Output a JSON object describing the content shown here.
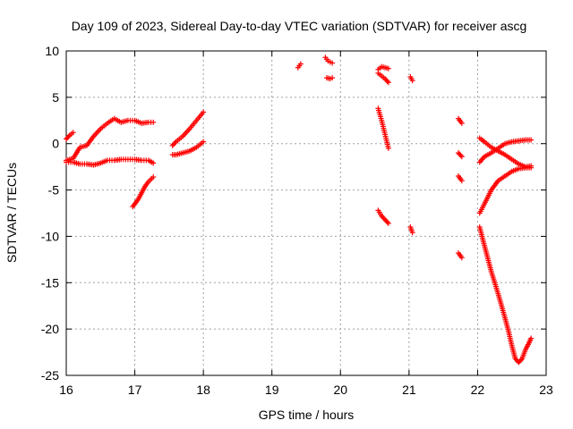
{
  "chart_data": {
    "type": "scatter",
    "title": "Day 109 of 2023, Sidereal Day-to-day VTEC variation (SDTVAR) for receiver ascg",
    "xlabel": "GPS time / hours",
    "ylabel": "SDTVAR / TECUs",
    "xlim": [
      16,
      23
    ],
    "ylim": [
      -25,
      10
    ],
    "xticks": [
      16,
      17,
      18,
      19,
      20,
      21,
      22,
      23
    ],
    "yticks": [
      10,
      5,
      0,
      -5,
      -10,
      -15,
      -20,
      -25
    ],
    "grid": true,
    "marker": "+",
    "color": "#ff0000",
    "segments": [
      {
        "x": [
          16.0,
          16.05,
          16.1
        ],
        "y": [
          0.5,
          0.9,
          1.2
        ]
      },
      {
        "x": [
          16.0,
          16.1,
          16.2,
          16.3,
          16.4,
          16.5,
          16.6,
          16.7,
          16.8,
          16.9,
          17.0,
          17.1,
          17.2,
          17.27
        ],
        "y": [
          -1.8,
          -1.6,
          -0.4,
          -0.2,
          0.8,
          1.6,
          2.2,
          2.7,
          2.3,
          2.5,
          2.5,
          2.2,
          2.3,
          2.3
        ]
      },
      {
        "x": [
          16.0,
          16.1,
          16.2,
          16.3,
          16.4,
          16.5,
          16.6,
          16.7,
          16.8,
          16.9,
          17.0,
          17.1,
          17.2,
          17.27
        ],
        "y": [
          -2.0,
          -2.0,
          -2.2,
          -2.2,
          -2.3,
          -2.1,
          -1.8,
          -1.8,
          -1.7,
          -1.7,
          -1.7,
          -1.8,
          -1.8,
          -2.1
        ]
      },
      {
        "x": [
          16.97,
          17.05,
          17.1,
          17.15,
          17.2,
          17.27
        ],
        "y": [
          -6.8,
          -6.0,
          -5.3,
          -4.6,
          -4.1,
          -3.6
        ]
      },
      {
        "x": [
          17.55,
          17.6,
          17.7,
          17.8,
          17.9,
          18.0
        ],
        "y": [
          -0.2,
          0.2,
          0.8,
          1.6,
          2.5,
          3.4
        ]
      },
      {
        "x": [
          17.55,
          17.6,
          17.7,
          17.8,
          17.9,
          18.0
        ],
        "y": [
          -1.2,
          -1.2,
          -1.0,
          -0.8,
          -0.4,
          0.2
        ]
      },
      {
        "x": [
          19.38,
          19.42
        ],
        "y": [
          8.2,
          8.6
        ]
      },
      {
        "x": [
          19.78,
          19.82,
          19.88
        ],
        "y": [
          9.3,
          8.9,
          8.7
        ]
      },
      {
        "x": [
          19.8,
          19.85,
          19.88
        ],
        "y": [
          7.1,
          7.0,
          7.1
        ]
      },
      {
        "x": [
          20.55,
          20.6,
          20.65,
          20.7
        ],
        "y": [
          8.0,
          8.3,
          8.2,
          8.1
        ]
      },
      {
        "x": [
          20.55,
          20.6,
          20.65,
          20.7
        ],
        "y": [
          7.6,
          7.3,
          7.0,
          6.6
        ]
      },
      {
        "x": [
          20.55,
          20.6,
          20.65,
          20.7
        ],
        "y": [
          3.8,
          2.5,
          1.0,
          -0.5
        ]
      },
      {
        "x": [
          20.55,
          20.6,
          20.65,
          20.7
        ],
        "y": [
          -7.2,
          -7.8,
          -8.2,
          -8.6
        ]
      },
      {
        "x": [
          21.02,
          21.05
        ],
        "y": [
          7.2,
          6.8
        ]
      },
      {
        "x": [
          21.02,
          21.05
        ],
        "y": [
          -9.0,
          -9.6
        ]
      },
      {
        "x": [
          21.72,
          21.77
        ],
        "y": [
          2.7,
          2.2
        ]
      },
      {
        "x": [
          21.72,
          21.77
        ],
        "y": [
          -1.0,
          -1.4
        ]
      },
      {
        "x": [
          21.72,
          21.77
        ],
        "y": [
          -3.5,
          -4.0
        ]
      },
      {
        "x": [
          21.72,
          21.77
        ],
        "y": [
          -11.8,
          -12.3
        ]
      },
      {
        "x": [
          22.03,
          22.1,
          22.2,
          22.3,
          22.4,
          22.5,
          22.6,
          22.7,
          22.78
        ],
        "y": [
          0.6,
          0.2,
          -0.4,
          -0.8,
          -1.2,
          -1.7,
          -2.2,
          -2.5,
          -2.4
        ]
      },
      {
        "x": [
          22.03,
          22.1,
          22.2,
          22.3,
          22.4,
          22.5,
          22.6,
          22.7,
          22.78
        ],
        "y": [
          -2.0,
          -1.4,
          -1.0,
          -0.5,
          0.0,
          0.2,
          0.3,
          0.4,
          0.4
        ]
      },
      {
        "x": [
          22.03,
          22.1,
          22.2,
          22.3,
          22.4,
          22.5,
          22.6,
          22.7,
          22.78
        ],
        "y": [
          -7.5,
          -6.5,
          -5.0,
          -4.0,
          -3.5,
          -3.0,
          -2.7,
          -2.6,
          -2.6
        ]
      },
      {
        "x": [
          22.03,
          22.1,
          22.2,
          22.3,
          22.4,
          22.45,
          22.5,
          22.55,
          22.6,
          22.65,
          22.7,
          22.75,
          22.78
        ],
        "y": [
          -9.0,
          -11.0,
          -13.8,
          -16.2,
          -18.8,
          -20.2,
          -21.8,
          -23.2,
          -23.6,
          -23.2,
          -22.2,
          -21.5,
          -21.0
        ]
      }
    ]
  }
}
